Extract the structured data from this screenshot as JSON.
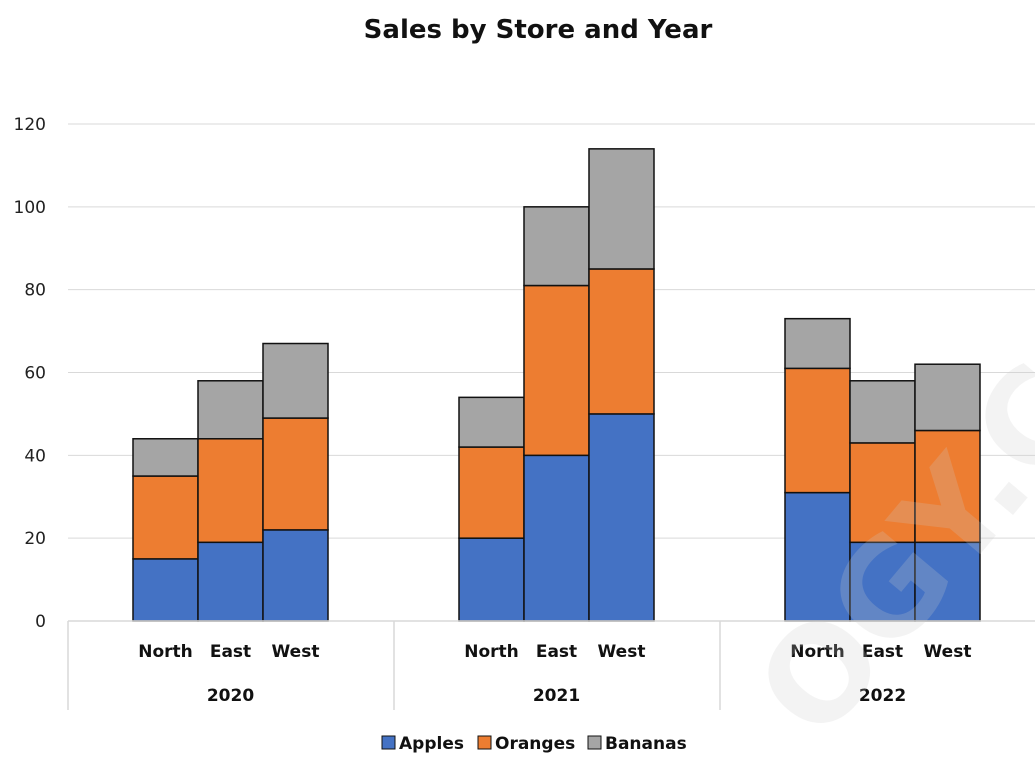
{
  "chart_data": {
    "type": "bar",
    "stacked": true,
    "title": "Sales by Store and Year",
    "xlabel": "",
    "ylabel": "",
    "ylim": [
      0,
      120
    ],
    "yticks": [
      0,
      20,
      40,
      60,
      80,
      100,
      120
    ],
    "grid": true,
    "legend_position": "bottom",
    "groups": [
      {
        "label": "2020",
        "categories": [
          "North",
          "East",
          "West"
        ]
      },
      {
        "label": "2021",
        "categories": [
          "North",
          "East",
          "West"
        ]
      },
      {
        "label": "2022",
        "categories": [
          "North",
          "East",
          "West"
        ]
      }
    ],
    "series": [
      {
        "name": "Apples",
        "color": "#4472C4",
        "values": [
          15,
          19,
          22,
          20,
          40,
          50,
          31,
          19,
          19
        ]
      },
      {
        "name": "Oranges",
        "color": "#ED7D31",
        "values": [
          20,
          25,
          27,
          22,
          41,
          35,
          30,
          24,
          27
        ]
      },
      {
        "name": "Bananas",
        "color": "#A5A5A5",
        "values": [
          9,
          14,
          18,
          12,
          19,
          29,
          12,
          15,
          16
        ]
      }
    ]
  },
  "watermark": {
    "text": "OGY.CO"
  }
}
